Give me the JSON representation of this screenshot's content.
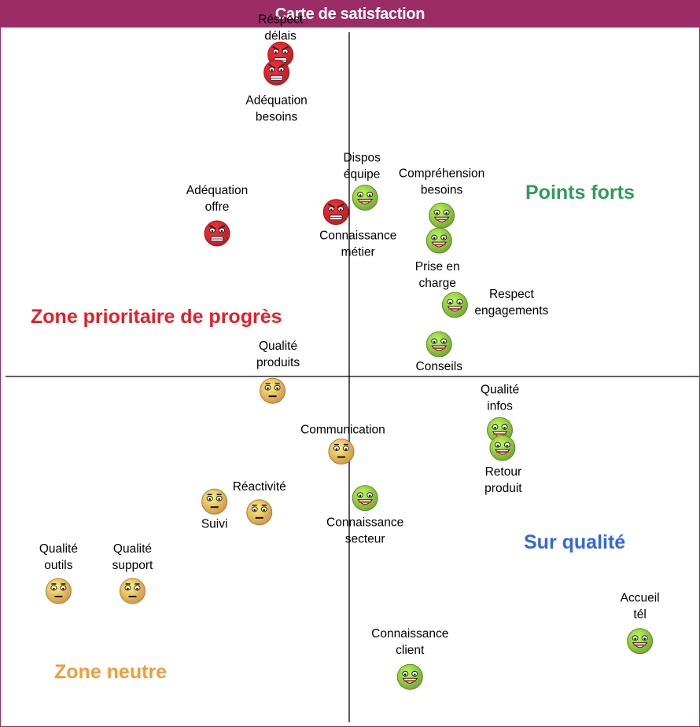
{
  "title": "Carte de satisfaction",
  "colors": {
    "frame": "#9b2c66",
    "negative": "#e0232d",
    "neutral": "#f7b35a",
    "positive": "#8cc63f",
    "zone_priority": "#e61e24",
    "zone_strong": "#2f9b5a",
    "zone_over": "#3366e0",
    "zone_neutral": "#f29c38"
  },
  "zones": [
    {
      "id": "priority",
      "label": "Zone prioritaire de progrès"
    },
    {
      "id": "strong",
      "label": "Points forts"
    },
    {
      "id": "over",
      "label": "Sur qualité"
    },
    {
      "id": "neutral",
      "label": "Zone neutre"
    }
  ],
  "chart_data": {
    "type": "scatter",
    "title": "Carte de satisfaction",
    "grid": false,
    "points": [
      {
        "label": [
          "Réspect",
          "délais"
        ],
        "mood": "negative",
        "x": -0.52,
        "y": 0.9
      },
      {
        "label": [
          "Adéquation",
          "besoins"
        ],
        "mood": "negative",
        "x": -0.55,
        "y": 0.85
      },
      {
        "label": [
          "Dispos",
          "équipe"
        ],
        "mood": "positive",
        "x": 0.12,
        "y": 0.5
      },
      {
        "label": [
          "Adéquation",
          "offre"
        ],
        "mood": "negative",
        "x": -1.0,
        "y": 0.4
      },
      {
        "label": [
          "Connaissance",
          "métier"
        ],
        "mood": "negative",
        "x": -0.1,
        "y": 0.46
      },
      {
        "label": [
          "Compréhension",
          "besoins"
        ],
        "mood": "positive",
        "x": 0.7,
        "y": 0.45
      },
      {
        "label": [
          "Prise en",
          "charge"
        ],
        "mood": "positive",
        "x": 0.68,
        "y": 0.38
      },
      {
        "label": [
          "Respect",
          "engagements"
        ],
        "mood": "positive",
        "x": 0.8,
        "y": 0.2
      },
      {
        "label": [
          "Conseils"
        ],
        "mood": "positive",
        "x": 0.68,
        "y": 0.09
      },
      {
        "label": [
          "Qualité",
          "produits"
        ],
        "mood": "neutral",
        "x": -0.58,
        "y": -0.04
      },
      {
        "label": [
          "Communication"
        ],
        "mood": "neutral",
        "x": -0.06,
        "y": -0.21
      },
      {
        "label": [
          "Qualité",
          "infos"
        ],
        "mood": "positive",
        "x": 1.14,
        "y": -0.15
      },
      {
        "label": [
          "Retour",
          "produit"
        ],
        "mood": "positive",
        "x": 1.16,
        "y": -0.2
      },
      {
        "label": [
          "Réactivité"
        ],
        "mood": "neutral",
        "x": -0.68,
        "y": -0.38
      },
      {
        "label": [
          "Suivi"
        ],
        "mood": "neutral",
        "x": -1.02,
        "y": -0.35
      },
      {
        "label": [
          "Connaissance",
          "secteur"
        ],
        "mood": "positive",
        "x": 0.12,
        "y": -0.34
      },
      {
        "label": [
          "Qualité",
          "outils"
        ],
        "mood": "neutral",
        "x": -2.2,
        "y": -0.6
      },
      {
        "label": [
          "Qualité",
          "support"
        ],
        "mood": "neutral",
        "x": -1.64,
        "y": -0.6
      },
      {
        "label": [
          "Accueil",
          "tél"
        ],
        "mood": "positive",
        "x": 2.2,
        "y": -0.74
      },
      {
        "label": [
          "Connaissance",
          "client"
        ],
        "mood": "positive",
        "x": 0.46,
        "y": -0.84
      }
    ]
  }
}
